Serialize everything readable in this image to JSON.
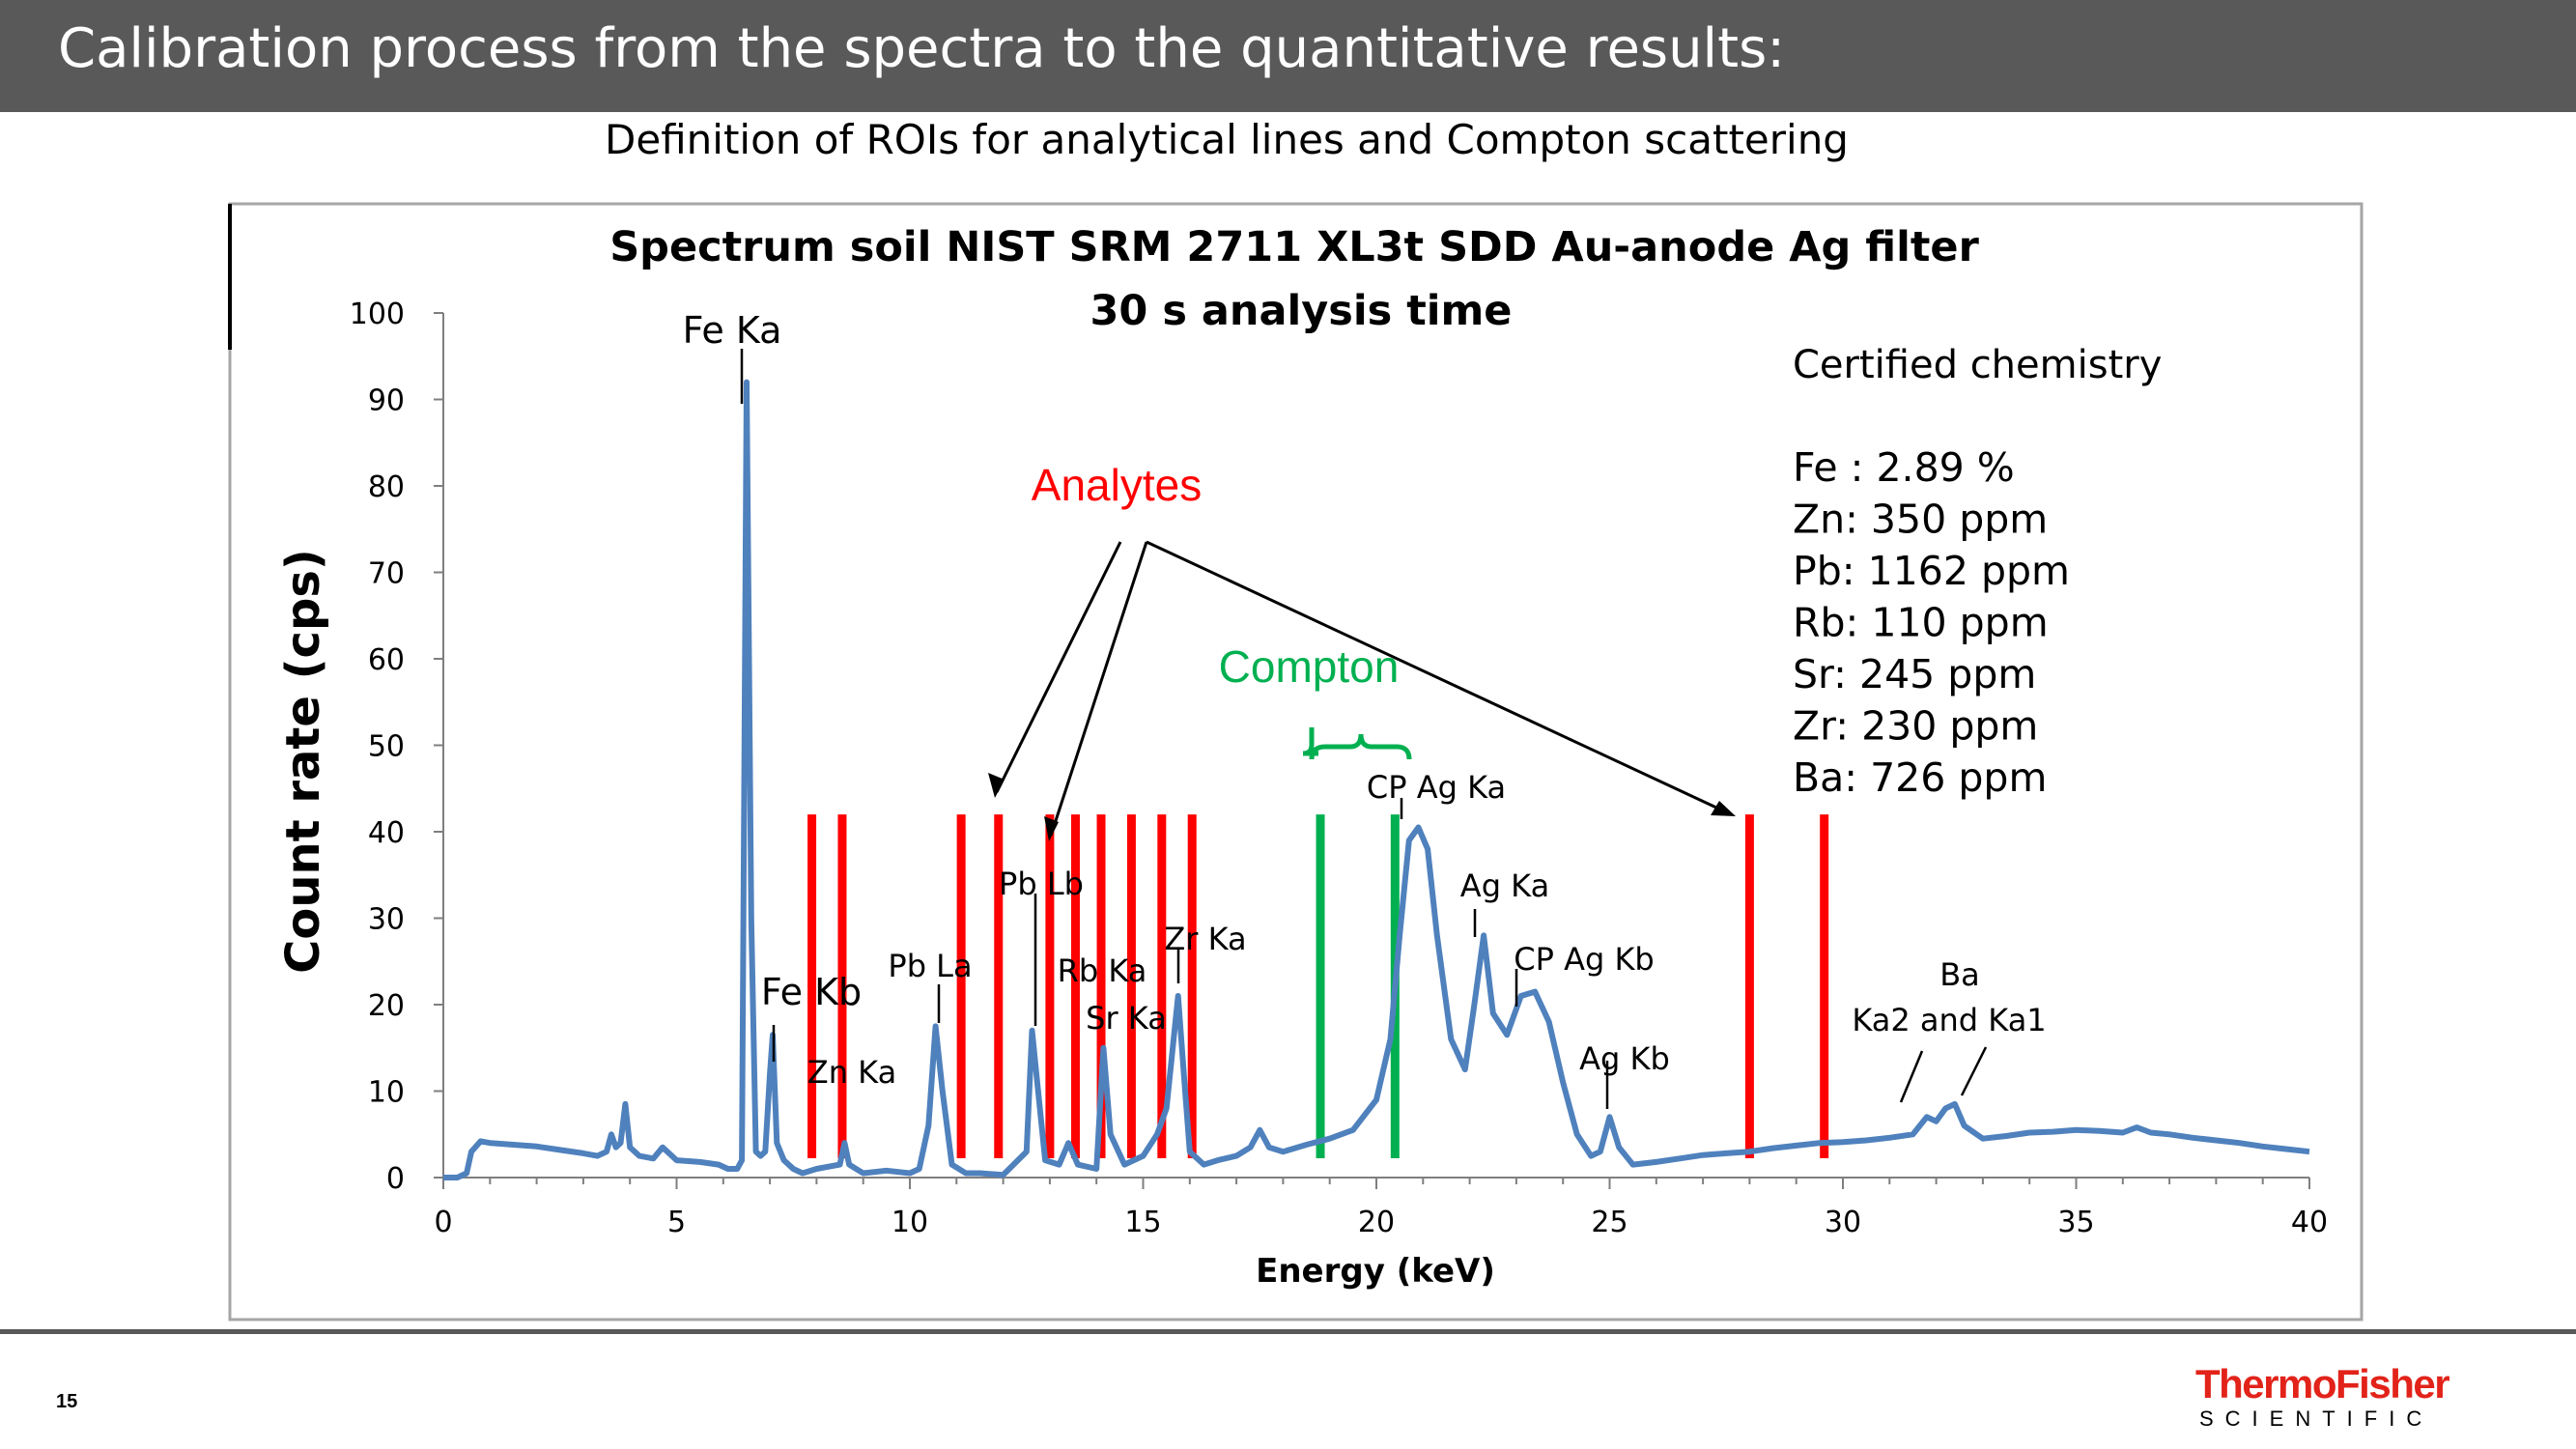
{
  "slide": {
    "title": "Calibration process from the spectra to the quantitative results:",
    "subtitle": "Definition of ROIs for analytical lines and Compton scattering",
    "page_number": "15"
  },
  "logo": {
    "line1": "ThermoFisher",
    "line2": "SCIENTIFIC"
  },
  "colors": {
    "title_bar": "#595959",
    "spectrum": "#4f81bd",
    "roi_analyte": "#ff0000",
    "roi_compton": "#00b050",
    "brand_red": "#e2231a"
  },
  "chart_data": {
    "type": "line",
    "title": "Spectrum soil NIST SRM 2711 XL3t SDD Au-anode Ag filter",
    "subtitle": "30 s analysis time",
    "xlabel": "Energy (keV)",
    "ylabel": "Count rate (cps)",
    "xlim": [
      0,
      40
    ],
    "ylim": [
      0,
      100
    ],
    "xticks": [
      0,
      5,
      10,
      15,
      20,
      25,
      30,
      35,
      40
    ],
    "yticks": [
      0,
      10,
      20,
      30,
      40,
      50,
      60,
      70,
      80,
      90,
      100
    ],
    "grid": false,
    "series": [
      {
        "x": [
          0.0,
          0.3,
          0.5,
          0.6,
          0.8,
          1.0,
          1.5,
          2.0,
          2.5,
          3.0,
          3.3,
          3.5,
          3.6,
          3.7,
          3.8,
          3.9,
          4.0,
          4.2,
          4.5,
          4.7,
          5.0,
          5.5,
          5.9,
          6.1,
          6.3,
          6.4,
          6.45,
          6.5,
          6.6,
          6.7,
          6.8,
          6.9,
          7.0,
          7.06,
          7.15,
          7.3,
          7.5,
          7.7,
          8.0,
          8.5,
          8.6,
          8.7,
          9.0,
          9.5,
          10.0,
          10.2,
          10.4,
          10.55,
          10.7,
          10.9,
          11.2,
          11.5,
          12.0,
          12.5,
          12.62,
          12.75,
          12.9,
          13.2,
          13.4,
          13.6,
          14.0,
          14.15,
          14.3,
          14.6,
          14.8,
          15.0,
          15.3,
          15.5,
          15.75,
          15.9,
          16.0,
          16.3,
          16.6,
          17.0,
          17.3,
          17.5,
          17.7,
          18.0,
          18.5,
          19.0,
          19.5,
          20.0,
          20.3,
          20.5,
          20.7,
          20.9,
          21.1,
          21.3,
          21.6,
          21.9,
          22.1,
          22.3,
          22.5,
          22.8,
          23.1,
          23.4,
          23.7,
          24.0,
          24.3,
          24.6,
          24.8,
          25.0,
          25.2,
          25.5,
          26.0,
          26.5,
          27.0,
          27.5,
          28.0,
          28.5,
          29.0,
          29.5,
          30.0,
          30.5,
          31.0,
          31.5,
          31.8,
          32.0,
          32.2,
          32.4,
          32.6,
          33.0,
          33.5,
          34.0,
          34.5,
          35.0,
          35.5,
          36.0,
          36.3,
          36.6,
          37.0,
          37.5,
          38.0,
          38.5,
          39.0,
          39.5,
          40.0
        ],
        "y": [
          0.0,
          0.0,
          0.5,
          3.0,
          4.2,
          4.0,
          3.8,
          3.6,
          3.2,
          2.8,
          2.5,
          3.0,
          5.0,
          3.5,
          4.0,
          8.5,
          3.5,
          2.5,
          2.2,
          3.5,
          2.0,
          1.8,
          1.5,
          1.0,
          1.0,
          2.0,
          45.0,
          92.0,
          30.0,
          3.0,
          2.5,
          3.0,
          12.0,
          16.5,
          4.0,
          2.0,
          1.0,
          0.5,
          1.0,
          1.5,
          4.0,
          1.5,
          0.5,
          0.8,
          0.5,
          1.0,
          6.0,
          17.5,
          10.0,
          1.5,
          0.5,
          0.5,
          0.3,
          3.0,
          17.0,
          10.0,
          2.0,
          1.5,
          4.0,
          1.5,
          1.0,
          15.0,
          5.0,
          1.5,
          2.0,
          2.5,
          5.0,
          8.0,
          21.0,
          10.0,
          3.0,
          1.5,
          2.0,
          2.5,
          3.5,
          5.5,
          3.5,
          3.0,
          3.8,
          4.5,
          5.5,
          9.0,
          16.0,
          28.0,
          39.0,
          40.5,
          38.0,
          28.0,
          16.0,
          12.5,
          20.0,
          28.0,
          19.0,
          16.5,
          21.0,
          21.5,
          18.0,
          11.0,
          5.0,
          2.5,
          3.0,
          7.0,
          3.5,
          1.5,
          1.8,
          2.2,
          2.6,
          2.8,
          3.0,
          3.4,
          3.7,
          4.0,
          4.1,
          4.3,
          4.6,
          5.0,
          7.0,
          6.5,
          8.0,
          8.5,
          6.0,
          4.5,
          4.8,
          5.2,
          5.3,
          5.5,
          5.4,
          5.2,
          5.8,
          5.2,
          5.0,
          4.6,
          4.3,
          4.0,
          3.6,
          3.3,
          3.0
        ]
      }
    ],
    "roi_lines": {
      "analyte_x": [
        7.9,
        8.55,
        11.1,
        11.9,
        13.0,
        13.55,
        14.1,
        14.75,
        15.4,
        16.05,
        28.0,
        29.6
      ],
      "compton_x": [
        18.8,
        20.4
      ],
      "height": 42
    },
    "peak_labels": [
      {
        "text": "Fe Ka"
      },
      {
        "text": "Fe Kb"
      },
      {
        "text": "Zn Ka"
      },
      {
        "text": "Pb La"
      },
      {
        "text": "Pb Lb"
      },
      {
        "text": "Rb Ka"
      },
      {
        "text": "Sr Ka"
      },
      {
        "text": "Zr Ka"
      },
      {
        "text": "CP Ag Ka"
      },
      {
        "text": "Ag Ka"
      },
      {
        "text": "CP Ag Kb"
      },
      {
        "text": "Ag Kb"
      },
      {
        "text": "Ba"
      },
      {
        "text": "Ka2 and Ka1"
      }
    ],
    "annotations": {
      "analytes": "Analytes",
      "compton": "Compton"
    },
    "certified": {
      "heading": "Certified chemistry",
      "lines": [
        "Fe : 2.89 %",
        "Zn: 350 ppm",
        "Pb: 1162 ppm",
        "Rb: 110 ppm",
        "Sr: 245 ppm",
        "Zr: 230 ppm",
        "Ba: 726 ppm"
      ]
    }
  }
}
